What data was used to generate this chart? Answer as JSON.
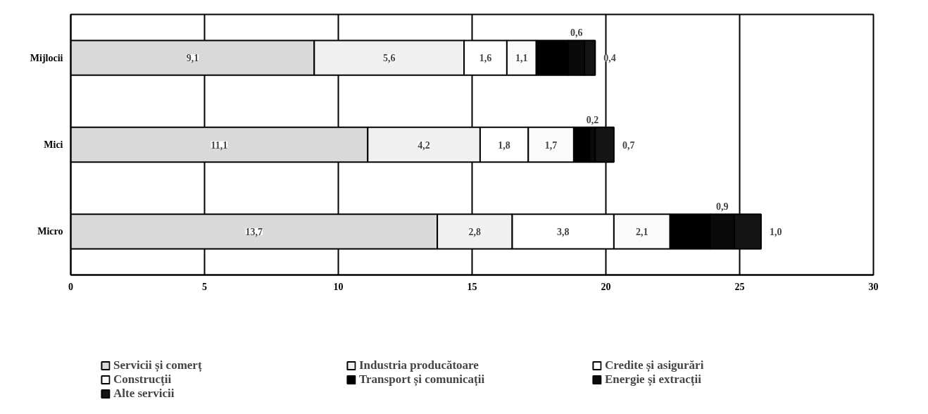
{
  "chart_data": {
    "type": "bar",
    "orientation": "horizontal",
    "stacked": true,
    "categories": [
      "Mijlocii",
      "Mici",
      "Micro"
    ],
    "series": [
      {
        "name": "Servicii și comerț",
        "color": "#d9d9d9",
        "values": [
          9.1,
          11.1,
          13.7
        ],
        "value_labels": [
          "9,1",
          "11,1",
          "13,7"
        ]
      },
      {
        "name": "Industria producătoare",
        "color": "#f0f0f0",
        "values": [
          5.6,
          4.2,
          2.8
        ],
        "value_labels": [
          "5,6",
          "4,2",
          "2,8"
        ]
      },
      {
        "name": "Credite și asigurări",
        "color": "#ffffff",
        "values": [
          1.6,
          1.8,
          3.8
        ],
        "value_labels": [
          "1,6",
          "1,8",
          "3,8"
        ]
      },
      {
        "name": "Construcții",
        "color": "#fafafa",
        "values": [
          1.1,
          1.7,
          2.1
        ],
        "value_labels": [
          "1,1",
          "1,7",
          "2,1"
        ]
      },
      {
        "name": "Transport și comunicații",
        "color": "#000000",
        "values": [
          1.2,
          0.6,
          1.5
        ],
        "value_labels": [
          null,
          null,
          null
        ]
      },
      {
        "name": "Energie și extracții",
        "color": "#0a0a0a",
        "values": [
          0.6,
          0.2,
          0.9
        ],
        "value_labels": [
          "0,6",
          "0,2",
          "0,9"
        ]
      },
      {
        "name": "Alte servicii",
        "color": "#141414",
        "values": [
          0.4,
          0.7,
          1.0
        ],
        "value_labels": [
          "0,4",
          "0,7",
          "1,0"
        ]
      }
    ],
    "xlim": [
      0,
      30
    ],
    "xticks": [
      0,
      5,
      10,
      15,
      20,
      25,
      30
    ],
    "grid": "x",
    "legend": "bottom"
  }
}
